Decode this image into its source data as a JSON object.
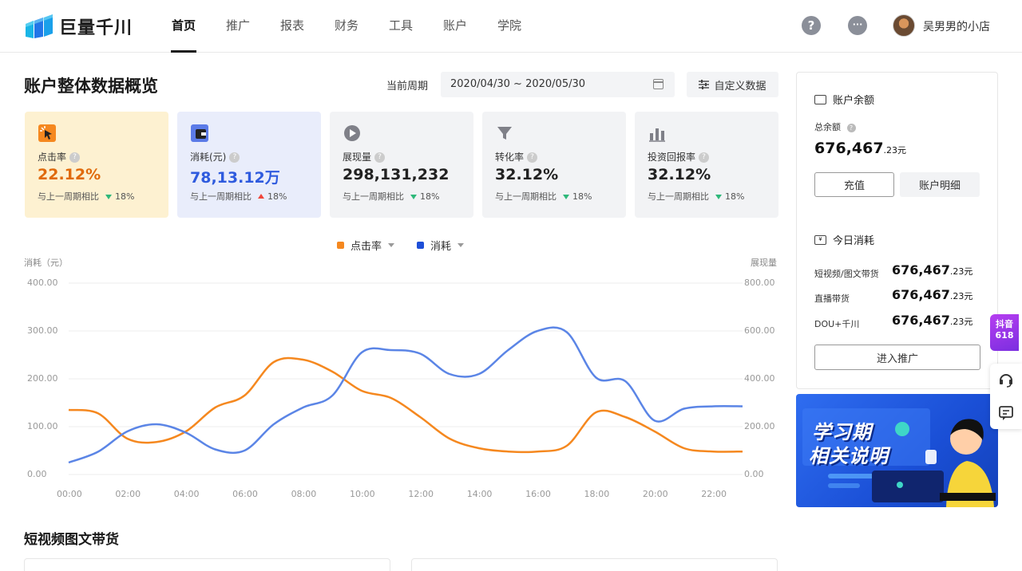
{
  "brand": {
    "name": "巨量千川"
  },
  "nav": {
    "items": [
      "首页",
      "推广",
      "报表",
      "财务",
      "工具",
      "账户",
      "学院"
    ],
    "active": 0
  },
  "user": {
    "name": "吴男男的小店"
  },
  "header_icons": {
    "help": "?",
    "message": "···"
  },
  "page": {
    "title": "账户整体数据概览",
    "period_label": "当前周期",
    "period_value": "2020/04/30 ~ 2020/05/30",
    "custom_button": "自定义数据"
  },
  "metrics": [
    {
      "label": "点击率",
      "value": "22.12%",
      "compare": "与上一周期相比",
      "change": "18%",
      "direction": "down",
      "bg": "#fdf1d1",
      "value_color": "#e06a0c",
      "icon": "click-icon"
    },
    {
      "label": "消耗(元)",
      "value": "78,13.12万",
      "compare": "与上一周期相比",
      "change": "18%",
      "direction": "up",
      "bg": "#e9edfb",
      "value_color": "#2f5bde",
      "icon": "wallet-icon"
    },
    {
      "label": "展现量",
      "value": "298,131,232",
      "compare": "与上一周期相比",
      "change": "18%",
      "direction": "down",
      "bg": "#f2f3f5",
      "value_color": "#222222",
      "icon": "play-icon"
    },
    {
      "label": "转化率",
      "value": "32.12%",
      "compare": "与上一周期相比",
      "change": "18%",
      "direction": "down",
      "bg": "#f2f3f5",
      "value_color": "#222222",
      "icon": "funnel-icon"
    },
    {
      "label": "投资回报率",
      "value": "32.12%",
      "compare": "与上一周期相比",
      "change": "18%",
      "direction": "down",
      "bg": "#f2f3f5",
      "value_color": "#222222",
      "icon": "bar-chart-icon"
    }
  ],
  "chart_data": {
    "type": "line",
    "x": [
      "00:00",
      "01:00",
      "02:00",
      "03:00",
      "04:00",
      "05:00",
      "06:00",
      "07:00",
      "08:00",
      "09:00",
      "10:00",
      "11:00",
      "12:00",
      "13:00",
      "14:00",
      "15:00",
      "16:00",
      "17:00",
      "18:00",
      "19:00",
      "20:00",
      "21:00",
      "22:00",
      "23:00"
    ],
    "x_ticks": [
      "00:00",
      "02:00",
      "04:00",
      "06:00",
      "08:00",
      "10:00",
      "12:00",
      "14:00",
      "16:00",
      "18:00",
      "20:00",
      "22:00"
    ],
    "series": [
      {
        "name": "点击率",
        "axis": "left",
        "color": "#f5881f",
        "values": [
          135,
          128,
          75,
          68,
          90,
          140,
          165,
          235,
          240,
          215,
          175,
          160,
          120,
          75,
          55,
          48,
          48,
          60,
          130,
          120,
          90,
          55,
          48,
          48
        ]
      },
      {
        "name": "消耗",
        "axis": "right",
        "color": "#5b85e6",
        "values": [
          50,
          95,
          180,
          210,
          175,
          105,
          100,
          210,
          280,
          330,
          510,
          520,
          505,
          420,
          420,
          520,
          600,
          595,
          405,
          390,
          225,
          275,
          285,
          285
        ]
      }
    ],
    "ylabel_left": "消耗（元）",
    "ylabel_right": "展现量",
    "y_left_ticks": [
      "400.00",
      "300.00",
      "200.00",
      "100.00",
      "0.00"
    ],
    "y_right_ticks": [
      "800.00",
      "600.00",
      "400.00",
      "200.00",
      "0.00"
    ],
    "ylim_left": [
      0,
      400
    ],
    "ylim_right": [
      0,
      800
    ],
    "grid": true,
    "legend_position": "top-center"
  },
  "section": {
    "title": "短视频图文带货"
  },
  "balance": {
    "title": "账户余额",
    "total_label": "总余额",
    "total_int": "676,467",
    "total_dec": ".23",
    "unit": "元",
    "recharge": "充值",
    "detail": "账户明细"
  },
  "today": {
    "title": "今日消耗",
    "rows": [
      {
        "label": "短视频/图文带货",
        "int": "676,467",
        "dec": ".23",
        "unit": "元"
      },
      {
        "label": "直播带货",
        "int": "676,467",
        "dec": ".23",
        "unit": "元"
      },
      {
        "label": "DOU+千川",
        "int": "676,467",
        "dec": ".23",
        "unit": "元"
      }
    ],
    "enter_button": "进入推广"
  },
  "banner": {
    "line1": "学习期",
    "line2": "相关说明"
  },
  "side": {
    "douyin": "抖音618"
  }
}
